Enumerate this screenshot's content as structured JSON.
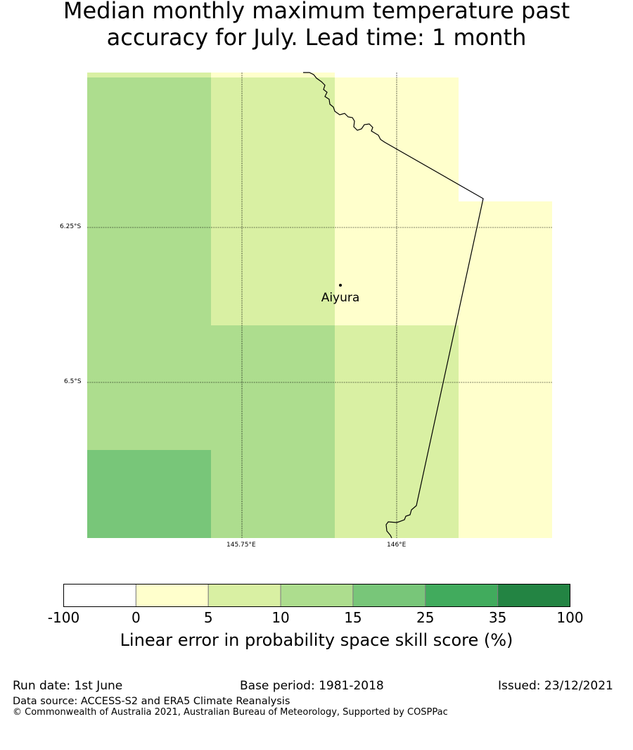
{
  "title_line1": "Median monthly maximum temperature past",
  "title_line2": "accuracy for July. Lead time: 1 month",
  "map": {
    "lon_ticks": [
      "145.75°E",
      "146°E"
    ],
    "lat_ticks": [
      "6.25°S",
      "6.5°S"
    ],
    "place": "Aiyura"
  },
  "colorbar": {
    "title": "Linear error in probability space skill score (%)",
    "labels": [
      "-100",
      "0",
      "5",
      "10",
      "15",
      "25",
      "35",
      "100"
    ],
    "colors": [
      "#ffffff",
      "#ffffcc",
      "#d9f0a3",
      "#addd8e",
      "#78c679",
      "#41ab5d",
      "#238443"
    ]
  },
  "footer": {
    "run_date": "Run date: 1st June",
    "base_period": "Base period: 1981-2018",
    "issued": "Issued: 23/12/2021",
    "data_source": "Data source: ACCESS-S2 and ERA5 Climate Reanalysis",
    "copyright": "© Commonwealth of Australia 2021, Australian Bureau of Meteorology, Supported by COSPPac"
  }
}
